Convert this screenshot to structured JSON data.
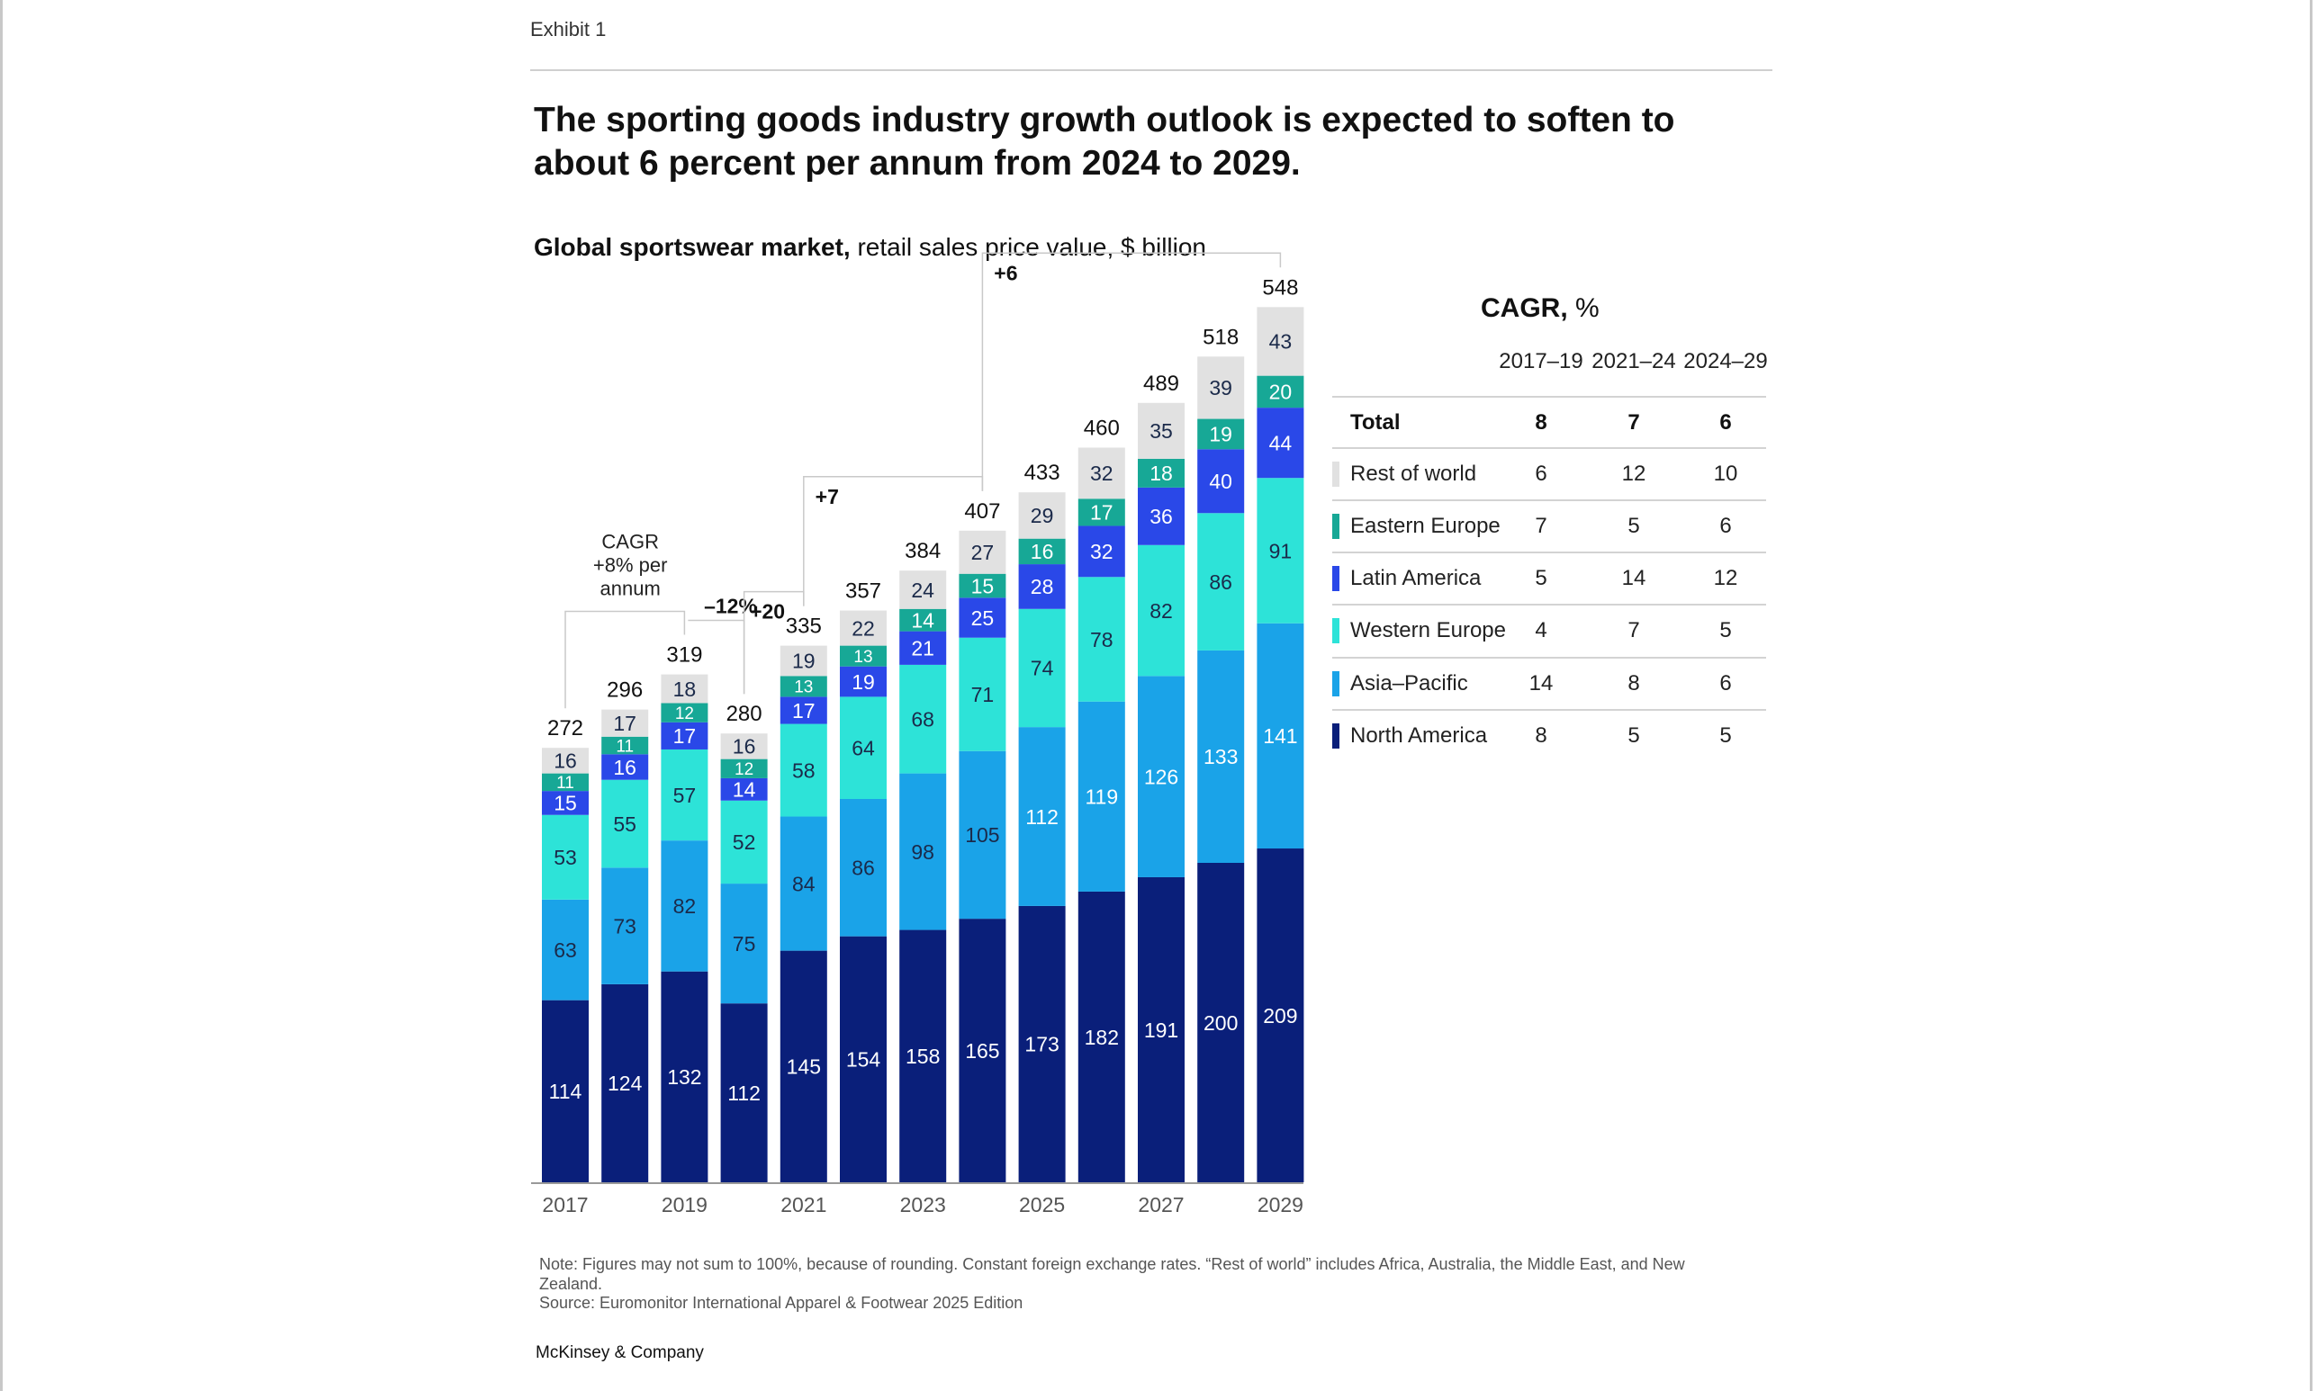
{
  "header": {
    "exhibit": "Exhibit 1",
    "title": "The sporting goods industry growth outlook is expected to soften to about 6 percent per annum from 2024 to 2029.",
    "subtitle_bold": "Global sportswear market,",
    "subtitle_rest": " retail sales price value, $ billion"
  },
  "colors": {
    "North America": "#0a1f7a",
    "Asia–Pacific": "#1aa3e8",
    "Western Europe": "#2de3d8",
    "Latin America": "#2a48e8",
    "Eastern Europe": "#17a896",
    "Rest of world": "#e1e1e1"
  },
  "chart_data": {
    "type": "bar",
    "stacked": true,
    "categories": [
      "2017",
      "2018",
      "2019",
      "2020",
      "2021",
      "2022",
      "2023",
      "2024",
      "2025",
      "2026",
      "2027",
      "2028",
      "2029"
    ],
    "x_tick_labels": [
      "2017",
      "2019",
      "2021",
      "2023",
      "2025",
      "2027",
      "2029"
    ],
    "series": [
      {
        "name": "North America",
        "values": [
          114,
          124,
          132,
          112,
          145,
          154,
          158,
          165,
          173,
          182,
          191,
          200,
          209
        ]
      },
      {
        "name": "Asia–Pacific",
        "values": [
          63,
          73,
          82,
          75,
          84,
          86,
          98,
          105,
          112,
          119,
          126,
          133,
          141
        ]
      },
      {
        "name": "Western Europe",
        "values": [
          53,
          55,
          57,
          52,
          58,
          64,
          68,
          71,
          74,
          78,
          82,
          86,
          91
        ]
      },
      {
        "name": "Latin America",
        "values": [
          15,
          16,
          17,
          14,
          17,
          19,
          21,
          25,
          28,
          32,
          36,
          40,
          44
        ]
      },
      {
        "name": "Eastern Europe",
        "values": [
          11,
          11,
          12,
          12,
          13,
          13,
          14,
          15,
          16,
          17,
          18,
          19,
          20
        ]
      },
      {
        "name": "Rest of world",
        "values": [
          16,
          17,
          18,
          16,
          19,
          22,
          24,
          27,
          29,
          32,
          35,
          39,
          43
        ]
      }
    ],
    "totals": [
      272,
      296,
      319,
      280,
      335,
      357,
      384,
      407,
      433,
      460,
      489,
      518,
      548
    ],
    "annotations": [
      {
        "text_lines": [
          "CAGR",
          "+8% per",
          "annum"
        ],
        "from": "2017",
        "to": "2019"
      },
      {
        "text": "–12%",
        "from": "2019",
        "to": "2020"
      },
      {
        "text": "+20",
        "from": "2020",
        "to": "2021"
      },
      {
        "text": "+7",
        "from": "2021",
        "to": "2024"
      },
      {
        "text": "+6",
        "from": "2024",
        "to": "2029"
      }
    ],
    "ylim": [
      0,
      560
    ]
  },
  "cagr_table": {
    "title_bold": "CAGR,",
    "title_rest": " %",
    "columns": [
      "2017–19",
      "2021–24",
      "2024–29"
    ],
    "rows": [
      {
        "label": "Total",
        "values": [
          "8",
          "7",
          "6"
        ],
        "total": true
      },
      {
        "label": "Rest of world",
        "values": [
          "6",
          "12",
          "10"
        ],
        "color": "#e1e1e1"
      },
      {
        "label": "Eastern Europe",
        "values": [
          "7",
          "5",
          "6"
        ],
        "color": "#17a896"
      },
      {
        "label": "Latin America",
        "values": [
          "5",
          "14",
          "12"
        ],
        "color": "#2a48e8"
      },
      {
        "label": "Western Europe",
        "values": [
          "4",
          "7",
          "5"
        ],
        "color": "#2de3d8"
      },
      {
        "label": "Asia–Pacific",
        "values": [
          "14",
          "8",
          "6"
        ],
        "color": "#1aa3e8"
      },
      {
        "label": "North America",
        "values": [
          "8",
          "5",
          "5"
        ],
        "color": "#0a1f7a"
      }
    ]
  },
  "footer": {
    "note": "Note: Figures may not sum to 100%, because of rounding. Constant foreign exchange rates. “Rest of world” includes Africa, Australia, the Middle East, and New Zealand.",
    "source": "Source: Euromonitor International Apparel & Footwear 2025 Edition",
    "brand": "McKinsey & Company"
  }
}
